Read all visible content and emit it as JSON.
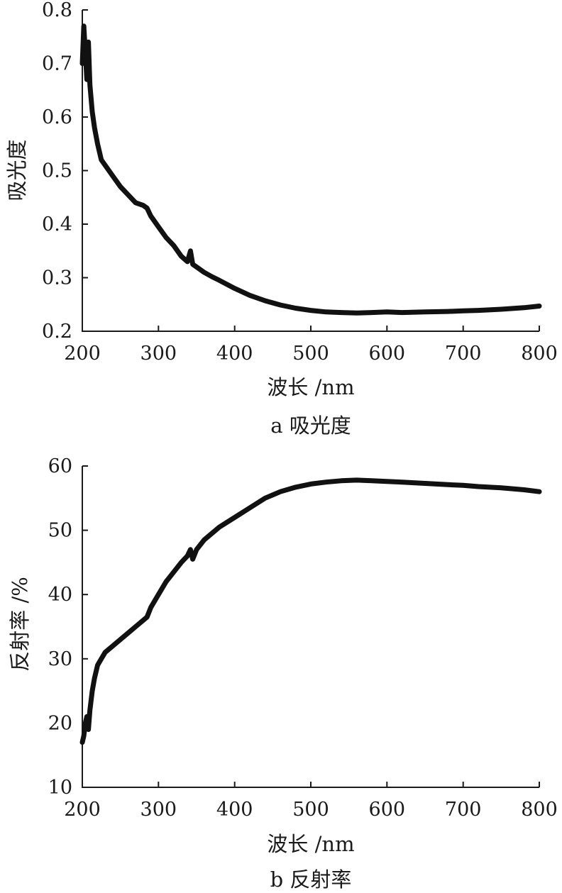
{
  "chart_data": [
    {
      "type": "line",
      "caption": "a 吸光度",
      "xlabel": "波长 /nm",
      "ylabel": "吸光度",
      "xlim": [
        200,
        800
      ],
      "ylim": [
        0.2,
        0.8
      ],
      "xticks": [
        "200",
        "300",
        "400",
        "500",
        "600",
        "700",
        "800"
      ],
      "yticks": [
        "0.2",
        "0.3",
        "0.4",
        "0.5",
        "0.6",
        "0.7",
        "0.8"
      ],
      "grid": false,
      "series": [
        {
          "color": "#111111",
          "x": [
            200,
            202,
            204,
            206,
            208,
            210,
            213,
            216,
            220,
            225,
            230,
            240,
            250,
            260,
            270,
            280,
            285,
            290,
            300,
            310,
            320,
            330,
            338,
            342,
            345,
            350,
            360,
            370,
            380,
            400,
            420,
            440,
            460,
            480,
            500,
            520,
            540,
            560,
            580,
            600,
            620,
            650,
            680,
            700,
            720,
            750,
            780,
            800
          ],
          "y": [
            0.7,
            0.77,
            0.72,
            0.67,
            0.74,
            0.66,
            0.61,
            0.58,
            0.55,
            0.52,
            0.51,
            0.49,
            0.47,
            0.455,
            0.44,
            0.435,
            0.43,
            0.415,
            0.395,
            0.375,
            0.36,
            0.34,
            0.33,
            0.35,
            0.325,
            0.32,
            0.31,
            0.302,
            0.295,
            0.28,
            0.267,
            0.257,
            0.249,
            0.243,
            0.239,
            0.236,
            0.235,
            0.234,
            0.235,
            0.236,
            0.235,
            0.236,
            0.237,
            0.238,
            0.239,
            0.241,
            0.244,
            0.247
          ]
        }
      ]
    },
    {
      "type": "line",
      "caption": "b 反射率",
      "xlabel": "波长 /nm",
      "ylabel": "反射率 /%",
      "xlim": [
        200,
        800
      ],
      "ylim": [
        10,
        60
      ],
      "xticks": [
        "200",
        "300",
        "400",
        "500",
        "600",
        "700",
        "800"
      ],
      "yticks": [
        "10",
        "20",
        "30",
        "40",
        "50",
        "60"
      ],
      "grid": false,
      "series": [
        {
          "color": "#111111",
          "x": [
            200,
            202,
            204,
            206,
            208,
            210,
            213,
            216,
            220,
            225,
            230,
            240,
            250,
            260,
            270,
            280,
            285,
            290,
            300,
            310,
            320,
            330,
            338,
            342,
            345,
            350,
            360,
            370,
            380,
            400,
            420,
            440,
            460,
            480,
            500,
            520,
            540,
            560,
            580,
            600,
            620,
            650,
            680,
            700,
            720,
            750,
            780,
            800
          ],
          "y": [
            17,
            18,
            20,
            21,
            19,
            22,
            25,
            27,
            29,
            30,
            31,
            32,
            33,
            34,
            35,
            36,
            36.5,
            38,
            40,
            42,
            43.5,
            45,
            46,
            47,
            45.5,
            47,
            48.5,
            49.5,
            50.5,
            52,
            53.5,
            55,
            56,
            56.7,
            57.2,
            57.5,
            57.7,
            57.8,
            57.7,
            57.6,
            57.5,
            57.3,
            57.1,
            57.0,
            56.8,
            56.6,
            56.3,
            56.0
          ]
        }
      ]
    }
  ]
}
